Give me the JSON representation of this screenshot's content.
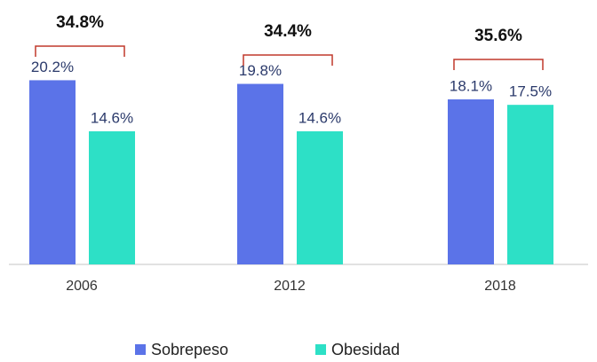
{
  "chart_data": {
    "type": "bar",
    "categories": [
      "2006",
      "2012",
      "2018"
    ],
    "series": [
      {
        "name": "Sobrepeso",
        "color": "#5b73e8",
        "values": [
          20.2,
          19.8,
          18.1
        ],
        "value_labels": [
          "20.2%",
          "19.8%",
          "18.1%"
        ]
      },
      {
        "name": "Obesidad",
        "color": "#2de0c6",
        "values": [
          14.6,
          14.6,
          17.5
        ],
        "value_labels": [
          "14.6%",
          "14.6%",
          "17.5%"
        ]
      }
    ],
    "totals": {
      "values": [
        34.8,
        34.4,
        35.6
      ],
      "value_labels": [
        "34.8%",
        "34.4%",
        "35.6%"
      ],
      "color": "#c0392b"
    },
    "ylim": [
      0,
      29
    ],
    "grid": false
  }
}
